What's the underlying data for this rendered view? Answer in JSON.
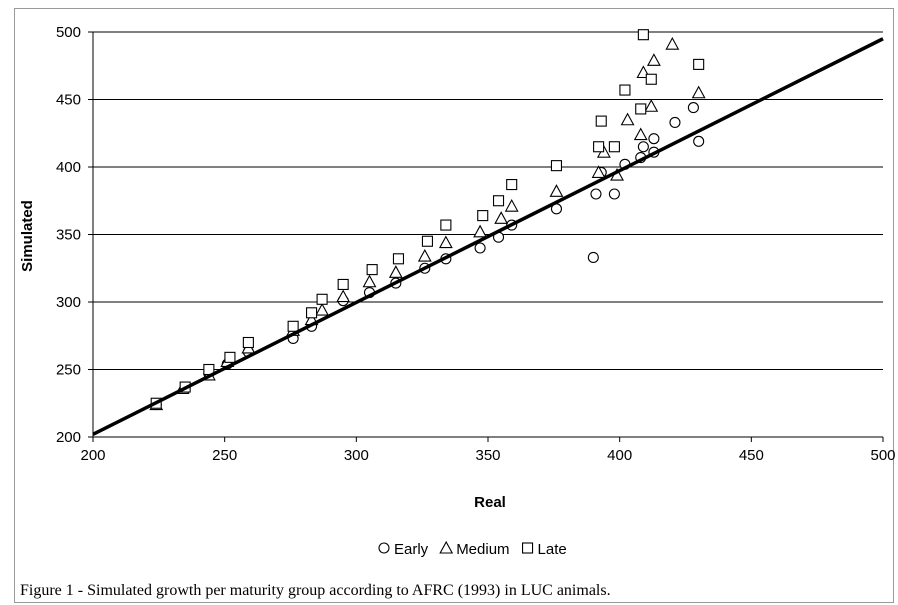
{
  "chart_data": {
    "type": "scatter",
    "xlabel": "Real",
    "ylabel": "Simulated",
    "xlim": [
      200,
      500
    ],
    "ylim": [
      200,
      500
    ],
    "xticks": [
      200,
      250,
      300,
      350,
      400,
      450,
      500
    ],
    "yticks": [
      200,
      250,
      300,
      350,
      400,
      450,
      500
    ],
    "grid": "horizontal",
    "legend_position": "bottom",
    "line": {
      "x": [
        200,
        500
      ],
      "y": [
        202,
        495
      ]
    },
    "series": [
      {
        "name": "Early",
        "marker": "circle",
        "points": [
          [
            224,
            224
          ],
          [
            244,
            247
          ],
          [
            251,
            254
          ],
          [
            259,
            263
          ],
          [
            276,
            273
          ],
          [
            283,
            282
          ],
          [
            295,
            301
          ],
          [
            305,
            307
          ],
          [
            315,
            314
          ],
          [
            326,
            325
          ],
          [
            334,
            332
          ],
          [
            347,
            340
          ],
          [
            354,
            348
          ],
          [
            359,
            357
          ],
          [
            376,
            369
          ],
          [
            390,
            333
          ],
          [
            391,
            380
          ],
          [
            393,
            396
          ],
          [
            398,
            380
          ],
          [
            402,
            402
          ],
          [
            408,
            407
          ],
          [
            409,
            415
          ],
          [
            413,
            411
          ],
          [
            413,
            421
          ],
          [
            421,
            433
          ],
          [
            428,
            444
          ],
          [
            430,
            419
          ]
        ]
      },
      {
        "name": "Medium",
        "marker": "triangle",
        "points": [
          [
            224,
            224
          ],
          [
            234,
            236
          ],
          [
            244,
            246
          ],
          [
            251,
            256
          ],
          [
            259,
            266
          ],
          [
            276,
            279
          ],
          [
            283,
            287
          ],
          [
            287,
            294
          ],
          [
            295,
            304
          ],
          [
            305,
            315
          ],
          [
            315,
            322
          ],
          [
            326,
            334
          ],
          [
            334,
            344
          ],
          [
            347,
            352
          ],
          [
            355,
            362
          ],
          [
            359,
            371
          ],
          [
            376,
            382
          ],
          [
            392,
            396
          ],
          [
            394,
            411
          ],
          [
            399,
            394
          ],
          [
            403,
            435
          ],
          [
            408,
            424
          ],
          [
            409,
            470
          ],
          [
            412,
            445
          ],
          [
            413,
            479
          ],
          [
            420,
            491
          ],
          [
            430,
            455
          ]
        ]
      },
      {
        "name": "Late",
        "marker": "square",
        "points": [
          [
            224,
            225
          ],
          [
            235,
            237
          ],
          [
            244,
            250
          ],
          [
            252,
            259
          ],
          [
            259,
            270
          ],
          [
            276,
            282
          ],
          [
            283,
            292
          ],
          [
            287,
            302
          ],
          [
            295,
            313
          ],
          [
            306,
            324
          ],
          [
            316,
            332
          ],
          [
            327,
            345
          ],
          [
            334,
            357
          ],
          [
            348,
            364
          ],
          [
            354,
            375
          ],
          [
            359,
            387
          ],
          [
            376,
            401
          ],
          [
            392,
            415
          ],
          [
            393,
            434
          ],
          [
            398,
            415
          ],
          [
            402,
            457
          ],
          [
            408,
            443
          ],
          [
            409,
            498
          ],
          [
            412,
            465
          ],
          [
            430,
            476
          ]
        ]
      }
    ]
  },
  "caption": "Figure 1 - Simulated growth per maturity group according to AFRC (1993) in LUC animals."
}
